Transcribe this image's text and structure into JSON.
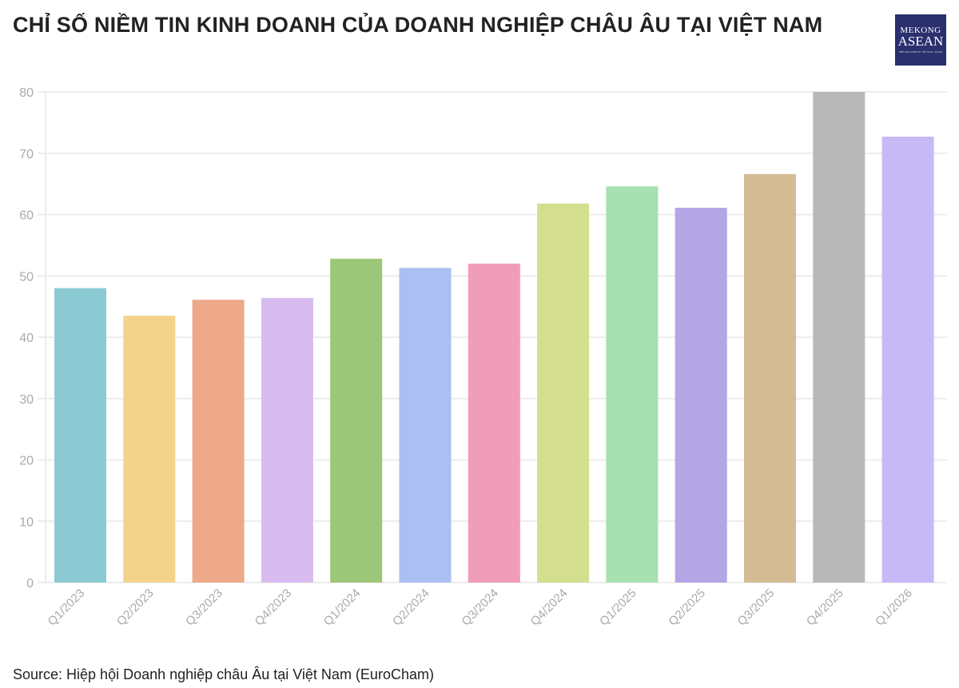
{
  "title": "CHỈ SỐ NIỀM TIN KINH DOANH CỦA DOANH NGHIỆP CHÂU ÂU TẠI VIỆT NAM",
  "logo": {
    "line1": "MEKONG",
    "line2": "ASEAN",
    "tagline": "DIỄN ĐÀN KINH TẾ VIỆT NAM - ASEAN",
    "bg_color": "#2a2f6e"
  },
  "source": "Source: Hiệp hội Doanh nghiệp châu Âu tại Việt Nam (EuroCham)",
  "chart_data": {
    "type": "bar",
    "title": "CHỈ SỐ NIỀM TIN KINH DOANH CỦA DOANH NGHIỆP CHÂU ÂU TẠI VIỆT NAM",
    "xlabel": "",
    "ylabel": "",
    "ylim": [
      0,
      80
    ],
    "yticks": [
      0,
      10,
      20,
      30,
      40,
      50,
      60,
      70,
      80
    ],
    "grid": true,
    "categories": [
      "Q1/2023",
      "Q2/2023",
      "Q3/2023",
      "Q4/2023",
      "Q1/2024",
      "Q2/2024",
      "Q3/2024",
      "Q4/2024",
      "Q1/2025",
      "Q2/2025",
      "Q3/2025",
      "Q4/2025",
      "Q1/2026"
    ],
    "values": [
      48.0,
      43.5,
      46.1,
      46.4,
      52.8,
      51.3,
      52.0,
      61.8,
      64.6,
      61.1,
      66.6,
      80.0,
      72.7
    ],
    "colors": [
      "#8ccbd3",
      "#f3d38b",
      "#eea98a",
      "#d8bcef",
      "#9dc778",
      "#abbff2",
      "#f19cb8",
      "#d3df8f",
      "#a7e0b1",
      "#b4a5e6",
      "#d3bc94",
      "#b8b8b8",
      "#c7b9f6"
    ]
  }
}
